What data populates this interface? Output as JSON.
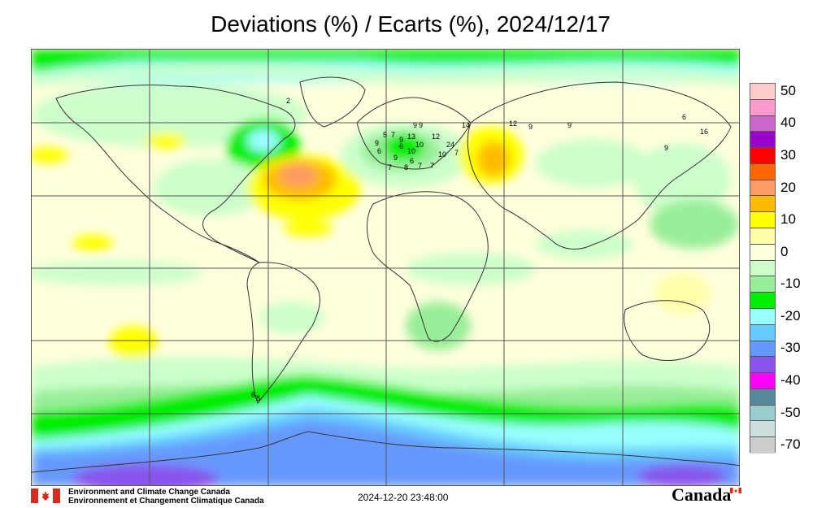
{
  "title": "Deviations (%) / Ecarts (%), 2024/12/17",
  "legend": {
    "levels": [
      {
        "label": "50",
        "color": "#ffcccc"
      },
      {
        "label": "",
        "color": "#ff99cc"
      },
      {
        "label": "40",
        "color": "#cc66cc"
      },
      {
        "label": "",
        "color": "#9900cc"
      },
      {
        "label": "30",
        "color": "#ff0000"
      },
      {
        "label": "",
        "color": "#ff6600"
      },
      {
        "label": "20",
        "color": "#ff9966"
      },
      {
        "label": "",
        "color": "#ffbb00"
      },
      {
        "label": "10",
        "color": "#ffff00"
      },
      {
        "label": "",
        "color": "#ffffaa"
      },
      {
        "label": "0",
        "color": "#ffffdd"
      },
      {
        "label": "",
        "color": "#ccffcc"
      },
      {
        "label": "-10",
        "color": "#99ee99"
      },
      {
        "label": "",
        "color": "#00ee00"
      },
      {
        "label": "-20",
        "color": "#99ffff"
      },
      {
        "label": "",
        "color": "#66ccff"
      },
      {
        "label": "-30",
        "color": "#6699ff"
      },
      {
        "label": "",
        "color": "#8855ee"
      },
      {
        "label": "-40",
        "color": "#ff00ff"
      },
      {
        "label": "",
        "color": "#558899"
      },
      {
        "label": "-50",
        "color": "#99cccc"
      },
      {
        "label": "",
        "color": "#cce0e0"
      },
      {
        "label": "-70",
        "color": "#cccccc"
      }
    ]
  },
  "stations": [
    "2",
    "9",
    "9",
    "14",
    "12",
    "9",
    "9",
    "6",
    "16",
    "9",
    "5",
    "7",
    "9",
    "13",
    "12",
    "9",
    "6",
    "10",
    "24",
    "6",
    "10",
    "10",
    "7",
    "9",
    "6",
    "7",
    "7",
    "7",
    "8",
    "6",
    "8"
  ],
  "footer": {
    "org_en": "Environment and Climate Change Canada",
    "org_fr": "Environnement et Changement Climatique Canada",
    "timestamp": "2024-12-20 23:48:00",
    "wordmark": "Canada"
  }
}
